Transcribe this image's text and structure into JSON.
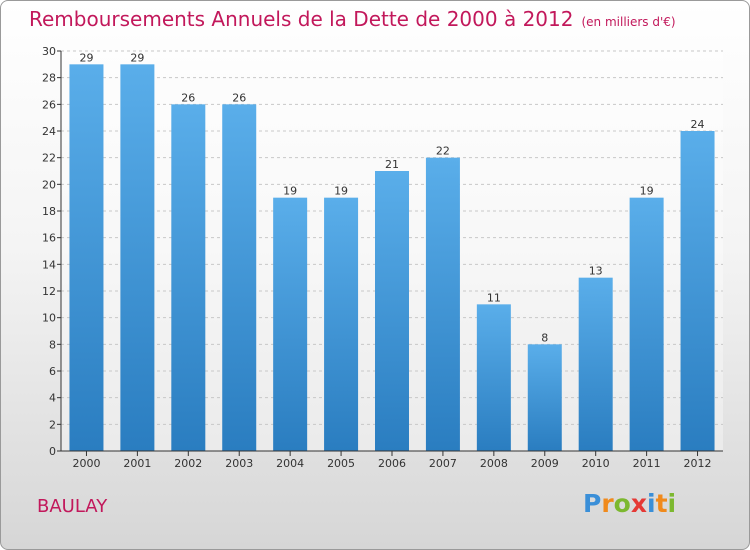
{
  "header": {
    "title": "Remboursements Annuels de la Dette de 2000 à 2012",
    "subtitle": "(en milliers d'€)"
  },
  "footer": {
    "commune": "BAULAY",
    "logo_letters": [
      "P",
      "r",
      "o",
      "x",
      "i",
      "t",
      "i"
    ],
    "logo_colors": [
      "#3a8fd8",
      "#f08a1c",
      "#7cb82f",
      "#e53935",
      "#3a8fd8",
      "#f08a1c",
      "#7cb82f"
    ]
  },
  "colors": {
    "bar_top": "#5aaeea",
    "bar_bottom": "#2a7dc0",
    "title": "#c2185b",
    "grid": "#c8c8c8",
    "axis": "#333333"
  },
  "chart_data": {
    "type": "bar",
    "title": "Remboursements Annuels de la Dette de 2000 à 2012",
    "subtitle": "(en milliers d'€)",
    "categories": [
      "2000",
      "2001",
      "2002",
      "2003",
      "2004",
      "2005",
      "2006",
      "2007",
      "2008",
      "2009",
      "2010",
      "2011",
      "2012"
    ],
    "values": [
      29,
      29,
      26,
      26,
      19,
      19,
      21,
      22,
      11,
      8,
      13,
      19,
      24
    ],
    "ylim": [
      0,
      30
    ],
    "yticks": [
      0,
      2,
      4,
      6,
      8,
      10,
      12,
      14,
      16,
      18,
      20,
      22,
      24,
      26,
      28,
      30
    ],
    "grid": true,
    "data_labels": true
  }
}
